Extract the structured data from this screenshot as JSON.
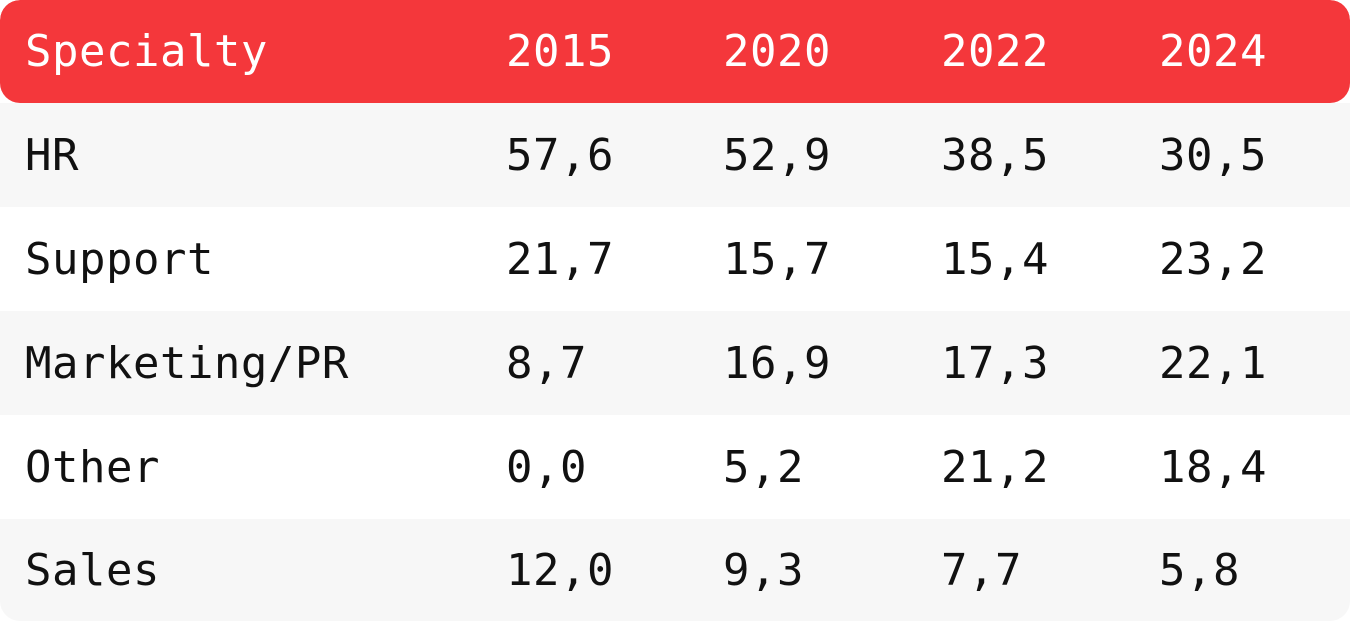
{
  "chart_data": {
    "type": "table",
    "columns": [
      "Specialty",
      "2015",
      "2020",
      "2022",
      "2024"
    ],
    "rows": [
      {
        "label": "HR",
        "values": [
          "57,6",
          "52,9",
          "38,5",
          "30,5"
        ]
      },
      {
        "label": "Support",
        "values": [
          "21,7",
          "15,7",
          "15,4",
          "23,2"
        ]
      },
      {
        "label": "Marketing/PR",
        "values": [
          "8,7",
          "16,9",
          "17,3",
          "22,1"
        ]
      },
      {
        "label": "Other",
        "values": [
          "0,0",
          "5,2",
          "21,2",
          "18,4"
        ]
      },
      {
        "label": "Sales",
        "values": [
          "12,0",
          "9,3",
          "7,7",
          "5,8"
        ]
      }
    ]
  },
  "colors": {
    "header_bg": "#f4373b",
    "header_text": "#ffffff",
    "row_shade": "#f7f7f7",
    "row_plain": "#ffffff",
    "body_text": "#111111"
  }
}
